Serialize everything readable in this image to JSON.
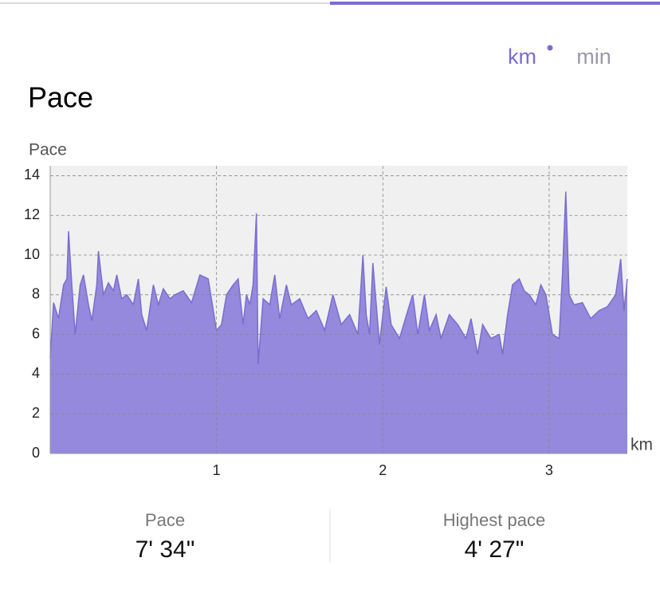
{
  "units": {
    "active": "km",
    "inactive": "min"
  },
  "header": {
    "title": "Pace"
  },
  "chart_data": {
    "type": "area",
    "ylabel": "Pace",
    "xlabel": "km",
    "color": "#9489dc",
    "line_color": "#7a6dd0",
    "grid": true,
    "xlim": [
      0,
      3.47
    ],
    "xticks": [
      1,
      2,
      3
    ],
    "ylim": [
      0,
      14.5
    ],
    "yticks": [
      0,
      2,
      4,
      6,
      8,
      10,
      12,
      14
    ],
    "x": [
      0,
      0.02,
      0.05,
      0.08,
      0.1,
      0.11,
      0.13,
      0.15,
      0.18,
      0.2,
      0.23,
      0.25,
      0.28,
      0.29,
      0.32,
      0.35,
      0.38,
      0.4,
      0.43,
      0.46,
      0.5,
      0.53,
      0.55,
      0.58,
      0.62,
      0.65,
      0.68,
      0.72,
      0.75,
      0.8,
      0.85,
      0.9,
      0.95,
      1,
      1.03,
      1.06,
      1.1,
      1.13,
      1.16,
      1.18,
      1.2,
      1.22,
      1.24,
      1.25,
      1.28,
      1.32,
      1.35,
      1.38,
      1.42,
      1.45,
      1.5,
      1.55,
      1.6,
      1.65,
      1.7,
      1.75,
      1.8,
      1.85,
      1.88,
      1.9,
      1.92,
      1.94,
      1.98,
      2,
      2.02,
      2.05,
      2.1,
      2.15,
      2.18,
      2.21,
      2.25,
      2.28,
      2.32,
      2.35,
      2.4,
      2.45,
      2.5,
      2.53,
      2.57,
      2.6,
      2.65,
      2.7,
      2.72,
      2.75,
      2.78,
      2.82,
      2.85,
      2.88,
      2.92,
      2.95,
      2.98,
      3.02,
      3.06,
      3.08,
      3.1,
      3.12,
      3.15,
      3.2,
      3.25,
      3.3,
      3.35,
      3.4,
      3.43,
      3.45,
      3.47
    ],
    "values": [
      4.8,
      7.6,
      6.8,
      8.5,
      8.8,
      11.2,
      8.5,
      6,
      8.5,
      9,
      7.5,
      6.7,
      8.5,
      10.2,
      8,
      8.6,
      8.2,
      9,
      7.8,
      8,
      7.5,
      8.8,
      7,
      6.2,
      8.5,
      7.5,
      8.3,
      7.8,
      8,
      8.2,
      7.6,
      9,
      8.8,
      6.2,
      6.5,
      8,
      8.5,
      8.8,
      6.5,
      8,
      7.5,
      8.5,
      12.1,
      4.5,
      7.8,
      7.5,
      9,
      6.8,
      8.5,
      7.5,
      7.8,
      6.8,
      7.2,
      6.2,
      8,
      6.5,
      7,
      6,
      10,
      7,
      6,
      9.6,
      5.5,
      7,
      8.4,
      6.5,
      5.8,
      7.2,
      8,
      6,
      8,
      6.2,
      7,
      5.8,
      7,
      6.5,
      5.8,
      6.8,
      5,
      6.5,
      5.8,
      6,
      5,
      7,
      8.5,
      8.8,
      8.2,
      8,
      7.5,
      8.5,
      8,
      6,
      5.8,
      9,
      13.2,
      8,
      7.5,
      7.6,
      6.8,
      7.2,
      7.4,
      8,
      9.8,
      7.2,
      8.8
    ]
  },
  "stats": [
    {
      "label": "Pace",
      "value": "7' 34\""
    },
    {
      "label": "Highest pace",
      "value": "4' 27\""
    }
  ]
}
